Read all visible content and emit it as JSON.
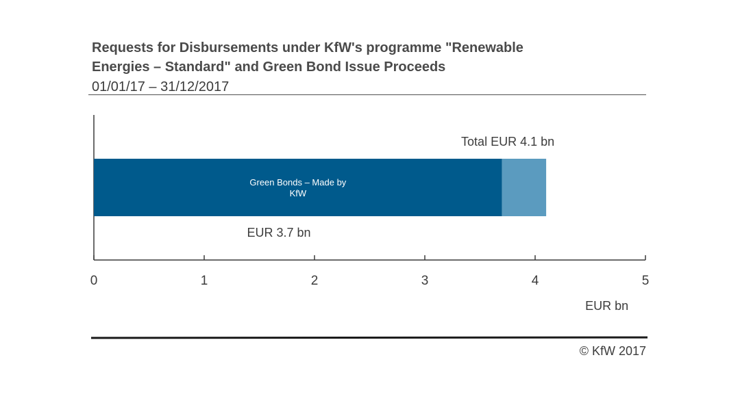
{
  "chart_data": {
    "type": "bar",
    "orientation": "horizontal",
    "stacked": true,
    "title_lines": [
      "Requests for Disbursements under KfW's programme \"Renewable",
      "Energies – Standard\" and Green Bond Issue Proceeds"
    ],
    "subtitle": "01/01/17 – 31/12/2017",
    "xlabel": "EUR bn",
    "xlim": [
      0,
      5
    ],
    "x_ticks": [
      "0",
      "1",
      "2",
      "3",
      "4",
      "5"
    ],
    "grid": false,
    "series": [
      {
        "name": "Green Bonds – Made by KfW",
        "value": 3.7,
        "color": "#005a8c"
      },
      {
        "value": 0.4,
        "color": "#5b9bbf"
      }
    ],
    "annotations": {
      "total": "Total EUR 4.1 bn",
      "segment": "EUR 3.7 bn"
    },
    "total": 4.1
  },
  "footer": {
    "copyright": "© KfW 2017"
  }
}
